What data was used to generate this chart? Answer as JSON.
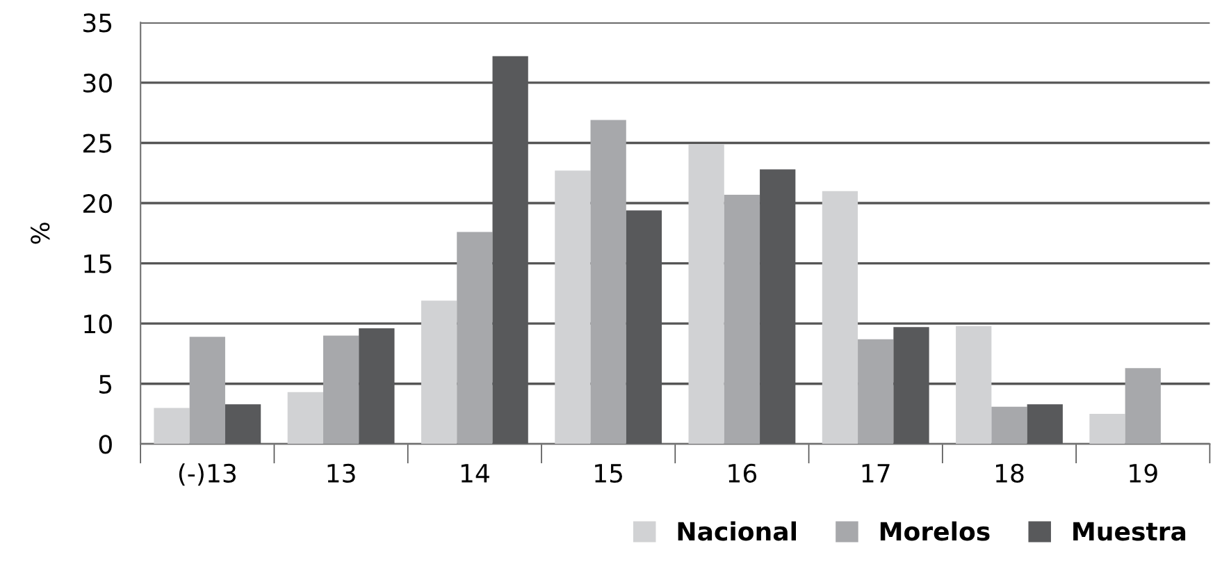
{
  "chart_data": {
    "type": "bar",
    "ylabel": "%",
    "categories": [
      "(-)13",
      "13",
      "14",
      "15",
      "16",
      "17",
      "18",
      "19"
    ],
    "series": [
      {
        "name": "Nacional",
        "color": "#d1d2d4",
        "values": [
          3.0,
          4.3,
          11.9,
          22.7,
          24.9,
          21.0,
          9.8,
          2.5
        ]
      },
      {
        "name": "Morelos",
        "color": "#a7a8ab",
        "values": [
          8.9,
          9.0,
          17.6,
          26.9,
          20.7,
          8.7,
          3.1,
          6.3
        ]
      },
      {
        "name": "Muestra",
        "color": "#58595b",
        "values": [
          3.3,
          9.6,
          32.2,
          19.4,
          22.8,
          9.7,
          3.3,
          null
        ]
      }
    ],
    "ylim": [
      0,
      35
    ],
    "yticks": [
      0,
      5,
      10,
      15,
      20,
      25,
      30,
      35
    ],
    "grid": "y",
    "legend": "bottom right"
  }
}
